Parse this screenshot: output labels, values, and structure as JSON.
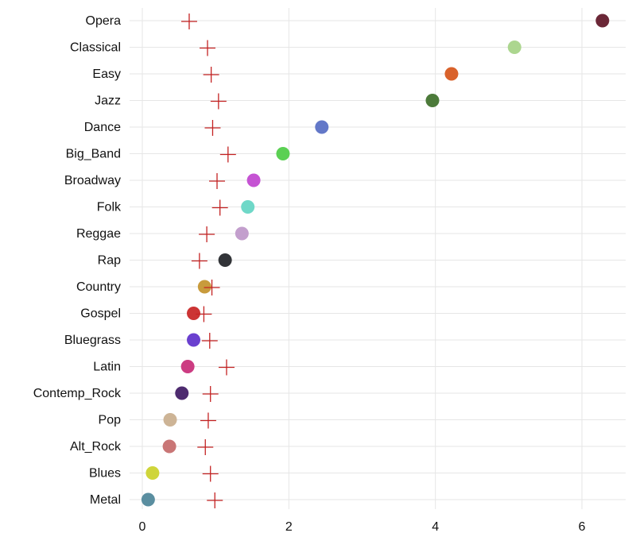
{
  "chart_data": {
    "type": "scatter",
    "title": "",
    "xlabel": "",
    "ylabel": "",
    "xlim": [
      0,
      6.5
    ],
    "x_ticks": [
      0,
      2,
      4,
      6
    ],
    "grid": true,
    "legend": "none",
    "categories": [
      "Opera",
      "Classical",
      "Easy",
      "Jazz",
      "Dance",
      "Big_Band",
      "Broadway",
      "Folk",
      "Reggae",
      "Rap",
      "Country",
      "Gospel",
      "Bluegrass",
      "Latin",
      "Contemp_Rock",
      "Pop",
      "Alt_Rock",
      "Blues",
      "Metal"
    ],
    "series": [
      {
        "marker": "circle",
        "values": [
          6.28,
          5.08,
          4.22,
          3.96,
          2.45,
          1.92,
          1.52,
          1.44,
          1.36,
          1.13,
          0.85,
          0.7,
          0.7,
          0.62,
          0.54,
          0.38,
          0.37,
          0.14,
          0.08
        ],
        "colors": [
          "#6b2737",
          "#acd68f",
          "#d9622b",
          "#4c7a3a",
          "#6378c8",
          "#5bd053",
          "#c553d3",
          "#6fd8c8",
          "#c39fcd",
          "#323438",
          "#c89b3c",
          "#cc3434",
          "#6a40cf",
          "#cc3c82",
          "#4e2b6f",
          "#cdb496",
          "#c97676",
          "#cfd53a",
          "#5a8ea0"
        ]
      },
      {
        "marker": "cross",
        "color": "#c42222",
        "values": [
          0.64,
          0.89,
          0.94,
          1.04,
          0.96,
          1.17,
          1.02,
          1.06,
          0.88,
          0.78,
          0.95,
          0.84,
          0.92,
          1.15,
          0.93,
          0.9,
          0.86,
          0.93,
          0.99
        ]
      }
    ]
  }
}
